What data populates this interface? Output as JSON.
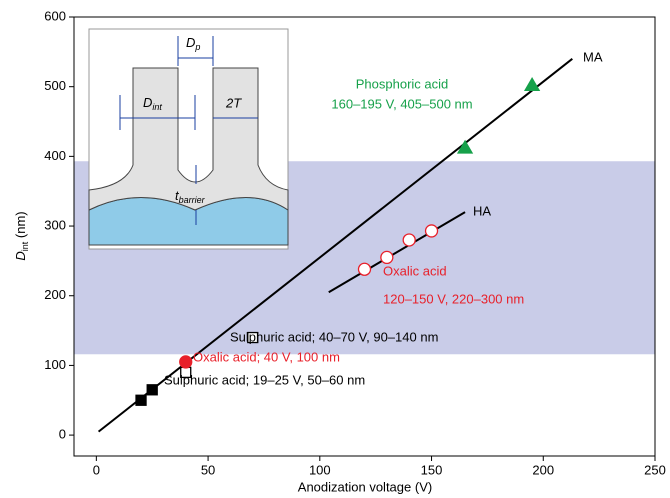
{
  "chart_data": {
    "type": "scatter",
    "xlabel": "Anodization voltage (V)",
    "ylabel": [
      "D",
      "int",
      " (nm)"
    ],
    "xlim": [
      -10,
      250
    ],
    "ylim": [
      -30,
      600
    ],
    "xticks": [
      0,
      50,
      100,
      150,
      200,
      250
    ],
    "yticks": [
      0,
      100,
      200,
      300,
      400,
      500,
      600
    ],
    "band": {
      "ylim": [
        116,
        393
      ],
      "color": "#c9cce8"
    },
    "lines": [
      {
        "name": "MA",
        "color": "#000000",
        "x": [
          1,
          213
        ],
        "values": [
          5,
          540
        ]
      },
      {
        "name": "HA",
        "color": "#000000",
        "x": [
          104,
          165
        ],
        "values": [
          205,
          320
        ]
      }
    ],
    "series": [
      {
        "marker": "square",
        "filled": true,
        "color": "#000000",
        "x": [
          20,
          25
        ],
        "values": [
          50,
          65
        ]
      },
      {
        "marker": "square",
        "filled": false,
        "color": "#000000",
        "x": [
          40,
          70
        ],
        "values": [
          90,
          140
        ]
      },
      {
        "marker": "circle",
        "filled": true,
        "color": "#e8202a",
        "x": [
          40
        ],
        "values": [
          105
        ]
      },
      {
        "marker": "circle",
        "filled": false,
        "color": "#e8202a",
        "x": [
          120,
          130,
          140,
          150
        ],
        "values": [
          238,
          255,
          280,
          293
        ]
      },
      {
        "marker": "triangle",
        "filled": true,
        "color": "#16a14a",
        "x": [
          165,
          195
        ],
        "values": [
          412,
          502
        ]
      }
    ],
    "annotations": [
      {
        "text": "Phosphoric acid",
        "color": "#16a14a"
      },
      {
        "text": "160–195 V, 405–500 nm",
        "color": "#16a14a"
      },
      {
        "text": "Oxalic acid",
        "color": "#e8202a"
      },
      {
        "text": "120–150 V, 220–300 nm",
        "color": "#e8202a"
      },
      {
        "text": "Sulphuric acid; 40–70 V, 90–140 nm",
        "color": "#000000"
      },
      {
        "text": "Oxalic acid; 40 V, 100 nm",
        "color": "#e8202a"
      },
      {
        "text": "Sulphuric acid; 19–25 V, 50–60 nm",
        "color": "#000000"
      }
    ],
    "inset": {
      "dp": [
        "D",
        "p"
      ],
      "dint": [
        "D",
        "int"
      ],
      "twot": "2T",
      "tbarrier": [
        "t",
        "barrier"
      ]
    }
  }
}
